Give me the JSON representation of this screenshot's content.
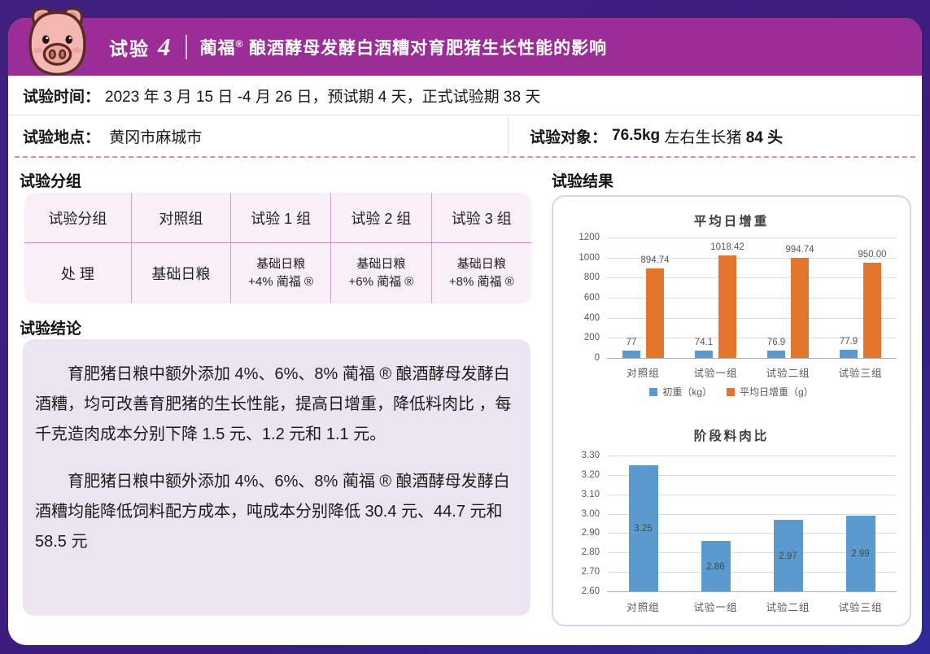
{
  "header": {
    "exp_label": "试验",
    "exp_number": "4",
    "brand": "蔺福",
    "reg_mark": "®",
    "title_rest": " 酿酒酵母发酵白酒糟对育肥猪生长性能的影响",
    "bar_color": "#9a2e96",
    "frame_color": "#3a1c7c"
  },
  "info": {
    "time_label": "试验时间：",
    "time_value": "2023 年 3 月 15 日 -4 月 26 日，预试期 4 天，正式试验期 38 天",
    "location_label": "试验地点：",
    "location_value": "黄冈市麻城市",
    "subject_label": "试验对象：",
    "subject_weight": "76.5kg",
    "subject_mid": " 左右生长猪 ",
    "subject_count": "84 头"
  },
  "grouping": {
    "heading": "试验分组",
    "table_rows": [
      [
        "试验分组",
        "对照组",
        "试验 1 组",
        "试验 2 组",
        "试验 3 组"
      ],
      [
        "处 理",
        "基础日粮",
        "基础日粮\n+4% 蔺福 ®",
        "基础日粮\n+6% 蔺福 ®",
        "基础日粮\n+8% 蔺福 ®"
      ]
    ]
  },
  "conclusion": {
    "heading": "试验结论",
    "paragraphs": [
      "育肥猪日粮中额外添加 4%、6%、8% 蔺福 ® 酿酒酵母发酵白酒糟，均可改善育肥猪的生长性能，提高日增重，降低料肉比 ，每千克造肉成本分别下降 1.5 元、1.2 元和 1.1 元。",
      "育肥猪日粮中额外添加 4%、6%、8% 蔺福 ® 酿酒酵母发酵白酒糟均能降低饲料配方成本，吨成本分别降低 30.4 元、44.7 元和 58.5 元"
    ]
  },
  "results": {
    "heading": "试验结果"
  },
  "chart_data": [
    {
      "type": "bar",
      "title": "平均日增重",
      "categories": [
        "对照组",
        "试验一组",
        "试验二组",
        "试验三组"
      ],
      "series": [
        {
          "name": "初重（kg）",
          "color": "#5b9ace",
          "values": [
            77,
            74.1,
            76.9,
            77.9
          ],
          "labels": [
            "77",
            "74.1",
            "76.9",
            "77.9"
          ],
          "label_position": "outside"
        },
        {
          "name": "平均日增重（g）",
          "color": "#e2762c",
          "values": [
            894.74,
            1018.42,
            994.74,
            950.0
          ],
          "labels": [
            "894.74",
            "1018.42",
            "994.74",
            "950.00"
          ],
          "label_position": "outside"
        }
      ],
      "ylim": [
        0,
        1200
      ],
      "yticks": [
        "1200",
        "1000",
        "800",
        "600",
        "400",
        "200",
        "0"
      ],
      "grid": true,
      "legend": true,
      "legend_position": "bottom"
    },
    {
      "type": "bar",
      "title": "阶段料肉比",
      "categories": [
        "对照组",
        "试验一组",
        "试验二组",
        "试验三组"
      ],
      "series": [
        {
          "name": "阶段料肉比",
          "color": "#5b9ace",
          "values": [
            3.25,
            2.86,
            2.97,
            2.99
          ],
          "labels": [
            "3.25",
            "2.86",
            "2.97",
            "2.99"
          ],
          "label_position": "center"
        }
      ],
      "ylim": [
        2.6,
        3.3
      ],
      "yticks": [
        "3.30",
        "3.20",
        "3.10",
        "3.00",
        "2.90",
        "2.80",
        "2.70",
        "2.60"
      ],
      "grid": true,
      "legend": false
    }
  ],
  "colors": {
    "frame_purple": "#3a1c7c",
    "header_magenta": "#9a2e96",
    "table_bg": "#f8eff7",
    "table_divider": "#cba4c8",
    "conclusion_bg": "#ede4f2",
    "dashed_separator": "#cf8fc5",
    "chart_border": "#ddd2e9",
    "bar_blue": "#5b9ace",
    "bar_orange": "#e2762c"
  }
}
